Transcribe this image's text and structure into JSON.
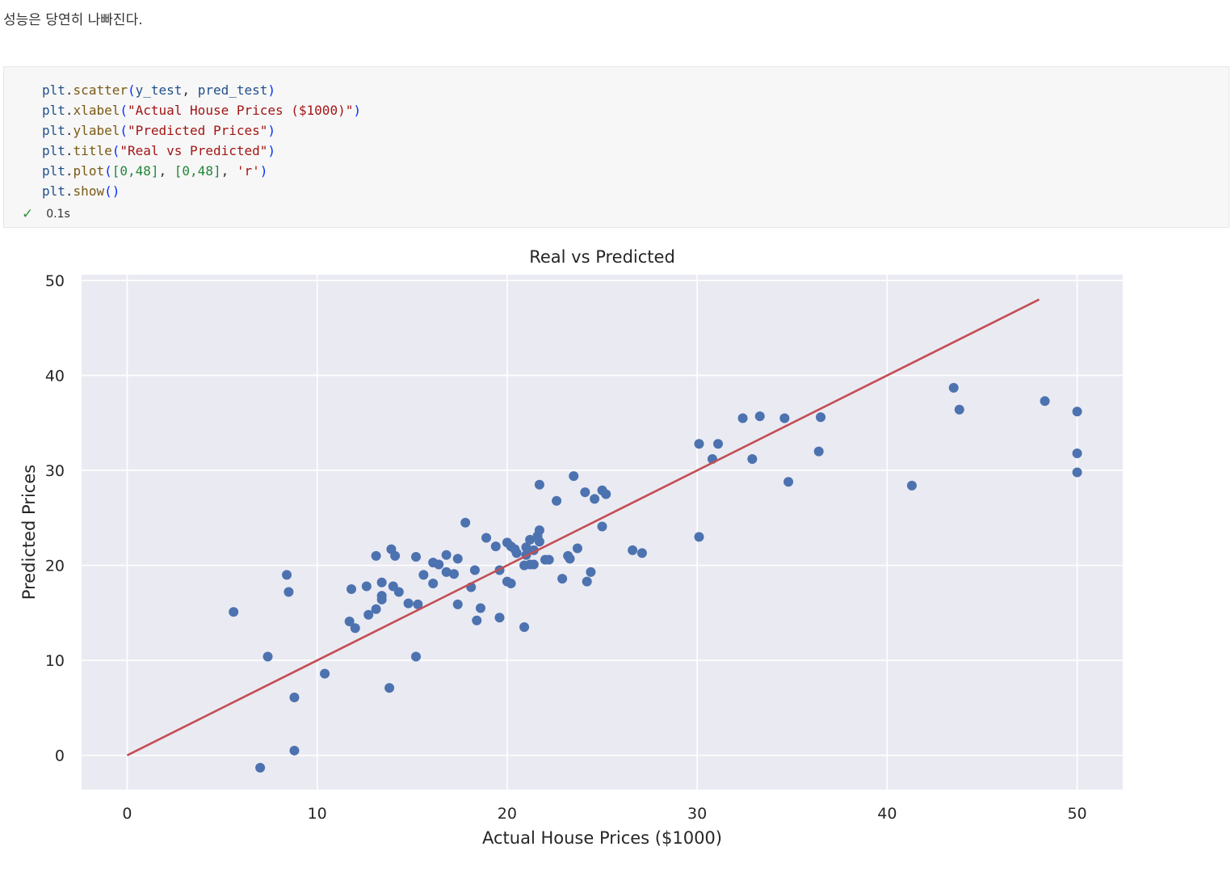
{
  "intro_text": "성능은 당연히 나빠진다.",
  "code_cell": {
    "lines": [
      [
        [
          "plt",
          "var"
        ],
        [
          ".",
          "d"
        ],
        [
          "scatter",
          "fn"
        ],
        [
          "(",
          "p"
        ],
        [
          "y_test",
          "var"
        ],
        [
          ", ",
          "d"
        ],
        [
          "pred_test",
          "var"
        ],
        [
          ")",
          "p"
        ]
      ],
      [
        [
          "plt",
          "var"
        ],
        [
          ".",
          "d"
        ],
        [
          "xlabel",
          "fn"
        ],
        [
          "(",
          "p"
        ],
        [
          "\"Actual House Prices ($1000)\"",
          "str"
        ],
        [
          ")",
          "p"
        ]
      ],
      [
        [
          "plt",
          "var"
        ],
        [
          ".",
          "d"
        ],
        [
          "ylabel",
          "fn"
        ],
        [
          "(",
          "p"
        ],
        [
          "\"Predicted Prices\"",
          "str"
        ],
        [
          ")",
          "p"
        ]
      ],
      [
        [
          "plt",
          "var"
        ],
        [
          ".",
          "d"
        ],
        [
          "title",
          "fn"
        ],
        [
          "(",
          "p"
        ],
        [
          "\"Real vs Predicted\"",
          "str"
        ],
        [
          ")",
          "p"
        ]
      ],
      [
        [
          "plt",
          "var"
        ],
        [
          ".",
          "d"
        ],
        [
          "plot",
          "fn"
        ],
        [
          "(",
          "p"
        ],
        [
          "[0,48]",
          "num"
        ],
        [
          ", ",
          "d"
        ],
        [
          "[0,48]",
          "num"
        ],
        [
          ", ",
          "d"
        ],
        [
          "'r'",
          "str"
        ],
        [
          ")",
          "p"
        ]
      ],
      [
        [
          "plt",
          "var"
        ],
        [
          ".",
          "d"
        ],
        [
          "show",
          "fn"
        ],
        [
          "()",
          "p"
        ]
      ]
    ],
    "exec_status_icon": "checkmark-icon",
    "exec_time": "0.1s"
  },
  "colors": {
    "plot_bg": "#eaeaf2",
    "grid": "#ffffff",
    "point": "#4c72b0",
    "line": "#c44e52"
  },
  "chart_data": {
    "type": "scatter",
    "title": "Real vs Predicted",
    "xlabel": "Actual House Prices ($1000)",
    "ylabel": "Predicted Prices",
    "xlim": [
      -2.4,
      52.4
    ],
    "ylim": [
      -3.6,
      50.6
    ],
    "xticks": [
      0,
      10,
      20,
      30,
      40,
      50
    ],
    "yticks": [
      0,
      10,
      20,
      30,
      40,
      50
    ],
    "grid": true,
    "points": [
      [
        5.6,
        15.1
      ],
      [
        7.0,
        -1.3
      ],
      [
        7.4,
        10.4
      ],
      [
        8.4,
        19.0
      ],
      [
        8.5,
        17.2
      ],
      [
        8.8,
        6.1
      ],
      [
        8.8,
        0.5
      ],
      [
        10.4,
        8.6
      ],
      [
        11.7,
        14.1
      ],
      [
        11.8,
        17.5
      ],
      [
        12.0,
        13.4
      ],
      [
        12.6,
        17.8
      ],
      [
        12.7,
        14.8
      ],
      [
        13.1,
        15.4
      ],
      [
        13.1,
        21.0
      ],
      [
        13.4,
        18.2
      ],
      [
        13.4,
        16.8
      ],
      [
        13.4,
        16.4
      ],
      [
        13.8,
        7.1
      ],
      [
        13.9,
        21.7
      ],
      [
        14.0,
        17.8
      ],
      [
        14.1,
        21.0
      ],
      [
        14.3,
        17.2
      ],
      [
        14.8,
        16.0
      ],
      [
        15.2,
        20.9
      ],
      [
        15.2,
        10.4
      ],
      [
        15.3,
        15.9
      ],
      [
        15.6,
        19.0
      ],
      [
        16.1,
        18.1
      ],
      [
        16.1,
        20.3
      ],
      [
        16.4,
        20.1
      ],
      [
        16.8,
        21.1
      ],
      [
        16.8,
        19.3
      ],
      [
        17.2,
        19.1
      ],
      [
        17.4,
        20.7
      ],
      [
        17.4,
        15.9
      ],
      [
        17.8,
        24.5
      ],
      [
        18.1,
        17.7
      ],
      [
        18.3,
        19.5
      ],
      [
        18.4,
        14.2
      ],
      [
        18.6,
        15.5
      ],
      [
        18.9,
        22.9
      ],
      [
        19.4,
        22.0
      ],
      [
        19.6,
        19.5
      ],
      [
        19.6,
        14.5
      ],
      [
        20.0,
        22.4
      ],
      [
        20.0,
        18.3
      ],
      [
        20.2,
        22.0
      ],
      [
        20.2,
        18.1
      ],
      [
        20.4,
        21.7
      ],
      [
        20.5,
        21.3
      ],
      [
        20.9,
        13.5
      ],
      [
        20.9,
        20.0
      ],
      [
        21.0,
        21.9
      ],
      [
        21.0,
        21.1
      ],
      [
        21.2,
        22.7
      ],
      [
        21.2,
        20.1
      ],
      [
        21.4,
        21.6
      ],
      [
        21.4,
        20.1
      ],
      [
        21.6,
        23.1
      ],
      [
        21.7,
        28.5
      ],
      [
        21.7,
        23.7
      ],
      [
        21.7,
        22.5
      ],
      [
        22.0,
        20.6
      ],
      [
        22.2,
        20.6
      ],
      [
        22.6,
        26.8
      ],
      [
        22.9,
        18.6
      ],
      [
        23.2,
        21.0
      ],
      [
        23.3,
        20.7
      ],
      [
        23.5,
        29.4
      ],
      [
        23.7,
        21.8
      ],
      [
        24.1,
        27.7
      ],
      [
        24.2,
        18.3
      ],
      [
        24.4,
        19.3
      ],
      [
        24.6,
        27.0
      ],
      [
        25.0,
        27.9
      ],
      [
        25.0,
        24.1
      ],
      [
        25.2,
        27.5
      ],
      [
        26.6,
        21.6
      ],
      [
        27.1,
        21.3
      ],
      [
        30.1,
        32.8
      ],
      [
        30.1,
        23.0
      ],
      [
        30.8,
        31.2
      ],
      [
        31.1,
        32.8
      ],
      [
        32.4,
        35.5
      ],
      [
        32.9,
        31.2
      ],
      [
        33.3,
        35.7
      ],
      [
        34.6,
        35.5
      ],
      [
        34.8,
        28.8
      ],
      [
        36.4,
        32.0
      ],
      [
        36.5,
        35.6
      ],
      [
        41.3,
        28.4
      ],
      [
        43.5,
        38.7
      ],
      [
        43.8,
        36.4
      ],
      [
        48.3,
        37.3
      ],
      [
        50.0,
        36.2
      ],
      [
        50.0,
        31.8
      ],
      [
        50.0,
        29.8
      ]
    ],
    "line": {
      "x": [
        0,
        48
      ],
      "y": [
        0,
        48
      ],
      "color": "r"
    }
  }
}
